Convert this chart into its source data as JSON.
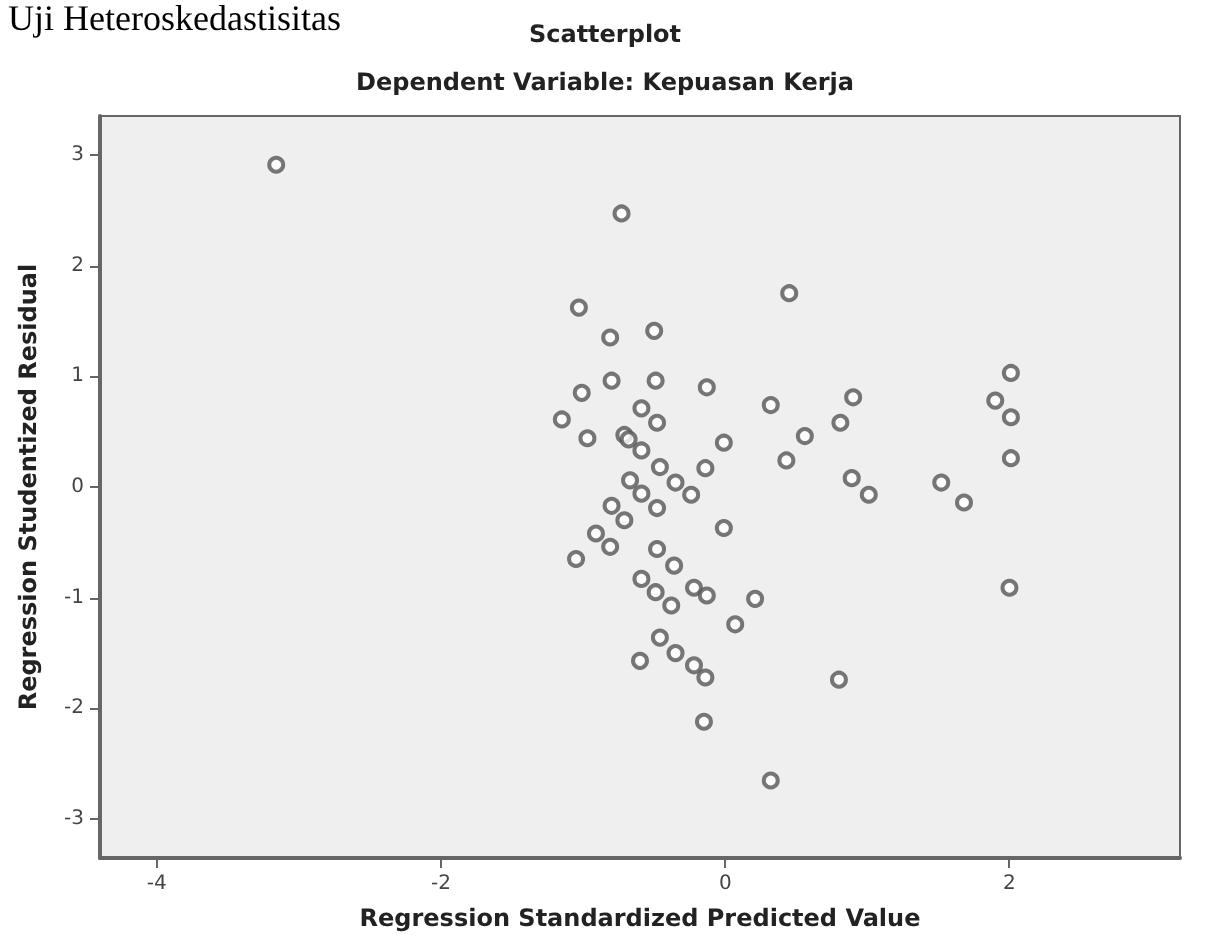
{
  "chart_data": {
    "type": "scatter",
    "title": "Scatterplot",
    "subtitle": "Dependent Variable: Kepuasan Kerja",
    "xlabel": "Regression Standardized Predicted Value",
    "ylabel": "Regression Studentized Residual",
    "annotations": [
      "Uji Heteroskedastisitas"
    ],
    "x": [
      -3.16,
      -0.73,
      0.45,
      -1.03,
      -0.81,
      -0.5,
      -0.8,
      -0.49,
      -0.13,
      -1.01,
      0.32,
      0.9,
      1.9,
      2.01,
      2.01,
      2.01,
      -0.59,
      -0.48,
      -1.15,
      -0.97,
      -0.71,
      -0.68,
      -0.59,
      -0.46,
      -0.01,
      -0.14,
      0.56,
      0.81,
      0.43,
      0.89,
      1.52,
      1.68,
      1.01,
      -0.35,
      -0.24,
      -0.67,
      -0.59,
      -0.48,
      -0.8,
      -0.71,
      -0.81,
      -0.91,
      -1.05,
      -0.01,
      -0.48,
      -0.36,
      -0.59,
      -0.49,
      -0.38,
      -0.22,
      -0.13,
      0.21,
      0.07,
      2.0,
      -0.46,
      -0.6,
      -0.35,
      -0.22,
      -0.14,
      0.8,
      -0.15,
      0.32
    ],
    "series": [
      {
        "color": "#555555",
        "values": [
          2.91,
          2.47,
          1.75,
          1.62,
          1.35,
          1.41,
          0.96,
          0.96,
          0.9,
          0.85,
          0.74,
          0.81,
          0.78,
          1.03,
          0.63,
          0.26,
          0.71,
          0.58,
          0.61,
          0.44,
          0.47,
          0.43,
          0.33,
          0.18,
          0.4,
          0.17,
          0.46,
          0.58,
          0.24,
          0.08,
          0.04,
          -0.14,
          -0.07,
          0.04,
          -0.07,
          0.06,
          -0.06,
          -0.19,
          -0.17,
          -0.3,
          -0.54,
          -0.42,
          -0.65,
          -0.37,
          -0.56,
          -0.71,
          -0.83,
          -0.95,
          -1.07,
          -0.91,
          -0.98,
          -1.01,
          -1.24,
          -0.91,
          -1.36,
          -1.57,
          -1.5,
          -1.61,
          -1.72,
          -1.74,
          -2.12,
          -2.65
        ]
      }
    ],
    "xlim": [
      -4.4,
      3.2
    ],
    "ylim": [
      -3.35,
      3.35
    ],
    "xticks": [
      -4,
      -2,
      0,
      2
    ],
    "yticks": [
      -3,
      -2,
      -1,
      0,
      1,
      2,
      3
    ],
    "grid": false,
    "marker": "circle"
  }
}
